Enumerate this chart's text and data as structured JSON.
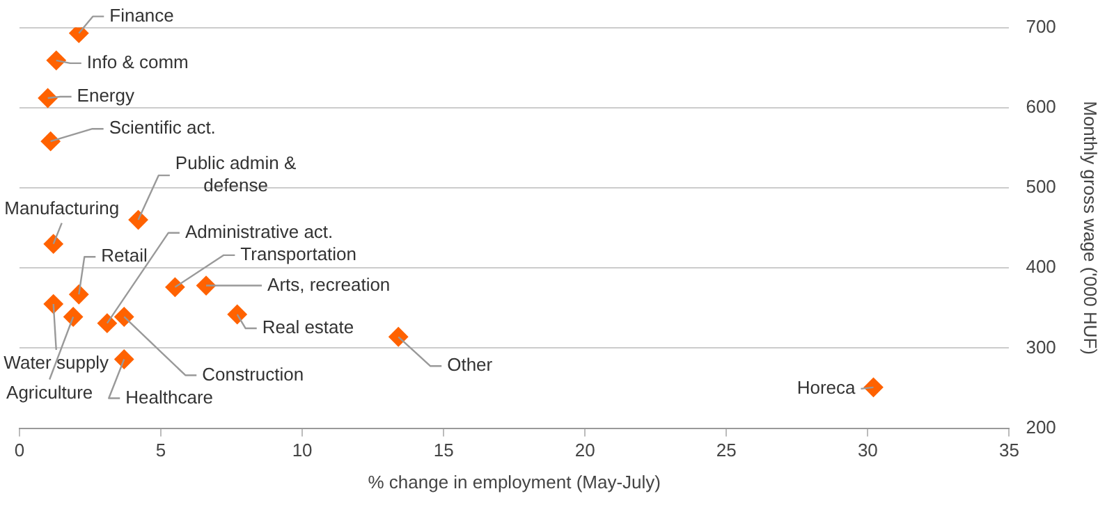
{
  "chart_data": {
    "type": "scatter",
    "xlabel": "% change in employment (May-July)",
    "ylabel": "Monthly gross wage ('000 HUF)",
    "x": [
      2.1,
      1.3,
      1.0,
      1.1,
      4.2,
      1.2,
      2.1,
      1.2,
      1.9,
      3.1,
      5.5,
      6.6,
      7.7,
      3.7,
      3.7,
      13.4,
      30.2
    ],
    "series": [
      {
        "color": "#ff6200",
        "values": [
          693,
          659,
          612,
          558,
          460,
          430,
          367,
          355,
          339,
          331,
          376,
          378,
          342,
          339,
          286,
          314,
          251
        ]
      }
    ],
    "xlim": [
      0,
      35
    ],
    "xticks": [
      0,
      5,
      10,
      15,
      20,
      25,
      30,
      35
    ],
    "ylim": [
      200,
      700
    ],
    "yticks": [
      200,
      300,
      400,
      500,
      600,
      700
    ],
    "grid": "y",
    "legend": false,
    "marker": "diamond",
    "annotations": [
      {
        "text": "Finance",
        "x": 2.1,
        "y": 693
      },
      {
        "text": "Info & comm",
        "x": 1.3,
        "y": 659
      },
      {
        "text": "Energy",
        "x": 1.0,
        "y": 612
      },
      {
        "text": "Scientific act.",
        "x": 1.1,
        "y": 558
      },
      {
        "text": "Public admin & defense",
        "x": 4.2,
        "y": 460
      },
      {
        "text": "Manufacturing",
        "x": 1.2,
        "y": 430
      },
      {
        "text": "Retail",
        "x": 2.1,
        "y": 367
      },
      {
        "text": "Water supply",
        "x": 1.2,
        "y": 355
      },
      {
        "text": "Agriculture",
        "x": 1.9,
        "y": 339
      },
      {
        "text": "Administrative act.",
        "x": 3.1,
        "y": 331
      },
      {
        "text": "Transportation",
        "x": 5.5,
        "y": 376
      },
      {
        "text": "Arts, recreation",
        "x": 6.6,
        "y": 378
      },
      {
        "text": "Real estate",
        "x": 7.7,
        "y": 342
      },
      {
        "text": "Construction",
        "x": 3.7,
        "y": 339
      },
      {
        "text": "Healthcare",
        "x": 3.7,
        "y": 286
      },
      {
        "text": "Other",
        "x": 13.4,
        "y": 314
      },
      {
        "text": "Horeca",
        "x": 30.2,
        "y": 251
      }
    ]
  }
}
